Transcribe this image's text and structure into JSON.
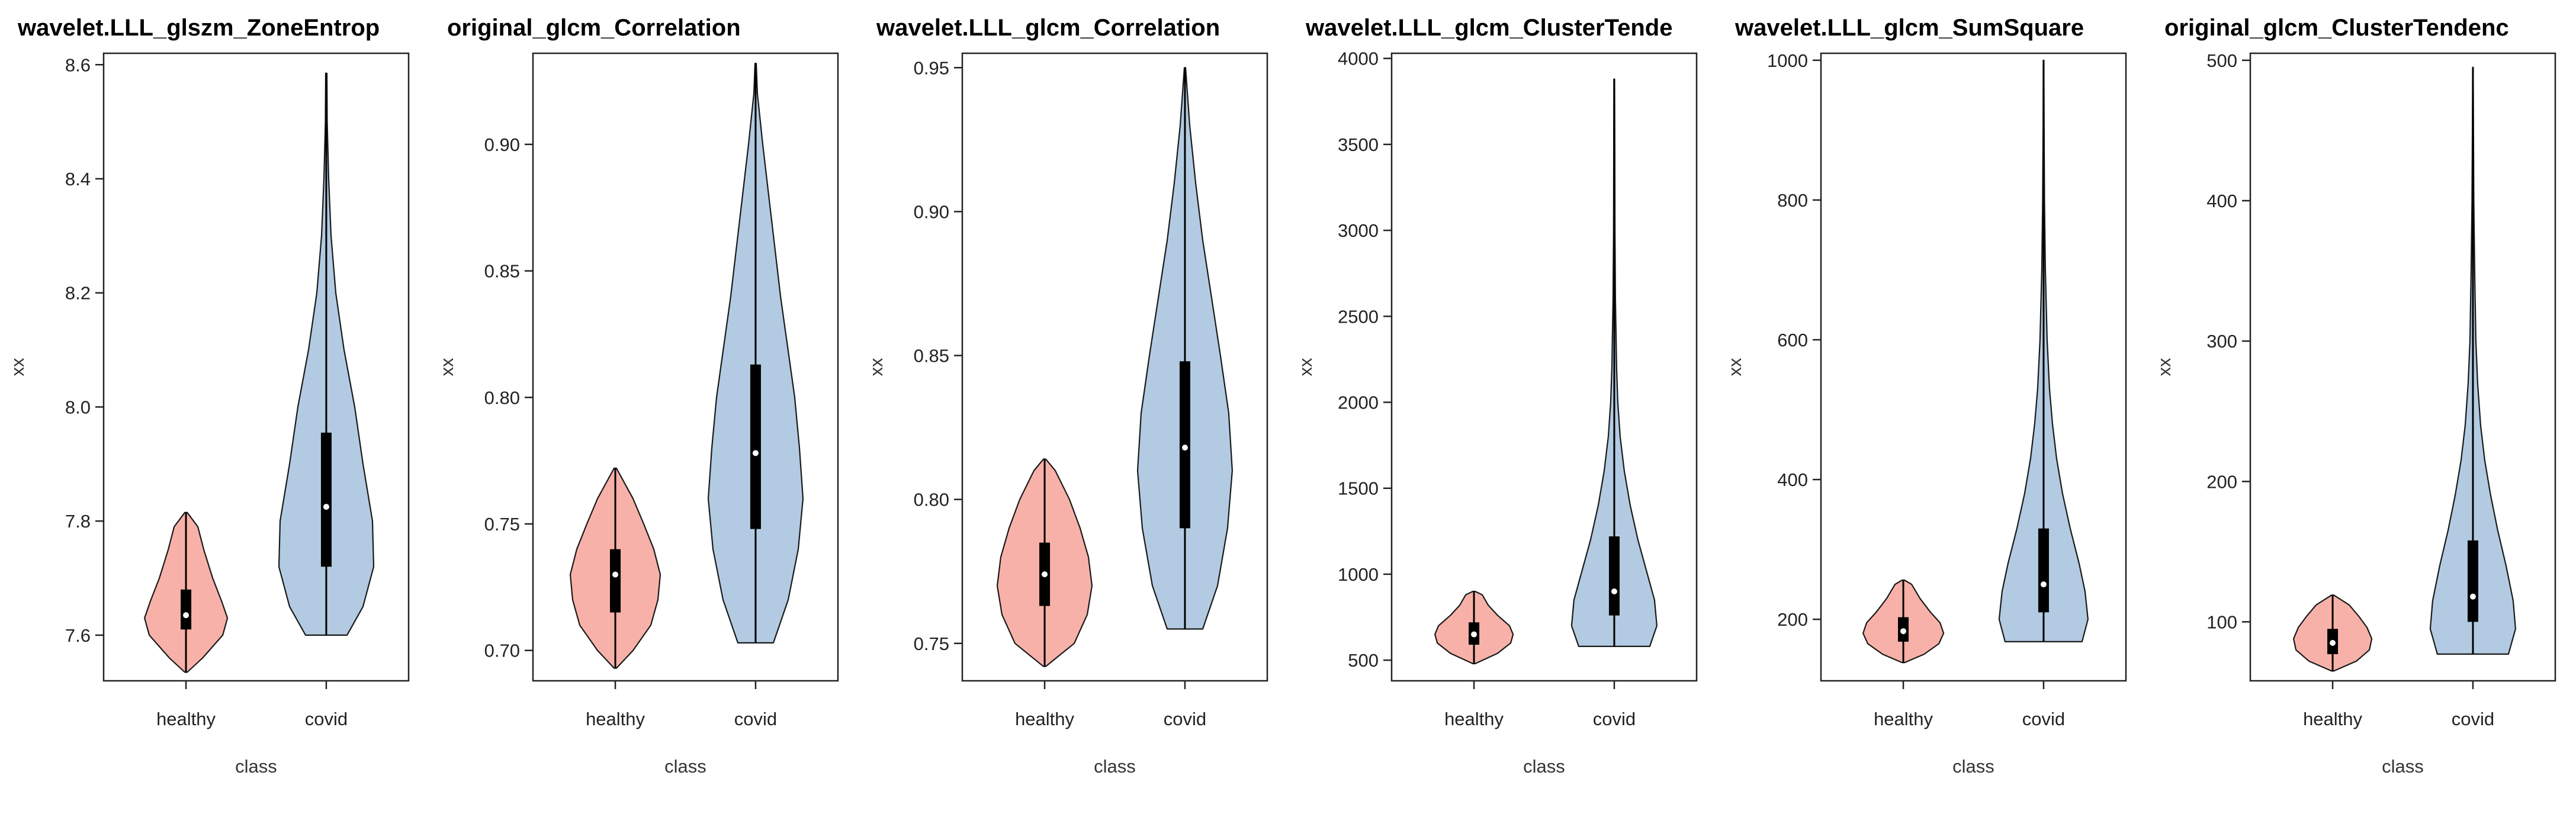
{
  "figure": {
    "panel_count": 6
  },
  "colors": {
    "healthy": "#f8b1a8",
    "covid": "#b2cbe2",
    "outline": "#1a1a1a",
    "box": "#000000",
    "median": "#ffffff"
  },
  "chart_data": [
    {
      "type": "violin",
      "title": "wavelet.LLL_glszm_ZoneEntrop",
      "xlabel": "class",
      "ylabel": "xx",
      "categories": [
        "healthy",
        "covid"
      ],
      "ylim": [
        7.52,
        8.62
      ],
      "yticks": [
        7.6,
        7.8,
        8.0,
        8.2,
        8.4,
        8.6
      ],
      "ytick_labels": [
        "7.6",
        "7.8",
        "8.0",
        "8.2",
        "8.4",
        "8.6"
      ],
      "series": [
        {
          "name": "healthy",
          "min": 7.535,
          "q1": 7.61,
          "median": 7.635,
          "q3": 7.68,
          "max": 7.815,
          "density": [
            [
              7.535,
              0.02
            ],
            [
              7.56,
              0.28
            ],
            [
              7.6,
              0.62
            ],
            [
              7.63,
              0.7
            ],
            [
              7.66,
              0.6
            ],
            [
              7.7,
              0.45
            ],
            [
              7.75,
              0.3
            ],
            [
              7.79,
              0.2
            ],
            [
              7.815,
              0.02
            ]
          ]
        },
        {
          "name": "covid",
          "min": 7.6,
          "q1": 7.72,
          "median": 7.825,
          "q3": 7.955,
          "max": 8.585,
          "density": [
            [
              7.6,
              0.35
            ],
            [
              7.65,
              0.62
            ],
            [
              7.72,
              0.8
            ],
            [
              7.8,
              0.78
            ],
            [
              7.9,
              0.62
            ],
            [
              8.0,
              0.48
            ],
            [
              8.1,
              0.3
            ],
            [
              8.2,
              0.16
            ],
            [
              8.3,
              0.08
            ],
            [
              8.4,
              0.04
            ],
            [
              8.5,
              0.015
            ],
            [
              8.585,
              0.01
            ]
          ]
        }
      ]
    },
    {
      "type": "violin",
      "title": "original_glcm_Correlation",
      "xlabel": "class",
      "ylabel": "xx",
      "categories": [
        "healthy",
        "covid"
      ],
      "ylim": [
        0.688,
        0.936
      ],
      "yticks": [
        0.7,
        0.75,
        0.8,
        0.85,
        0.9
      ],
      "ytick_labels": [
        "0.70",
        "0.75",
        "0.80",
        "0.85",
        "0.90"
      ],
      "series": [
        {
          "name": "healthy",
          "min": 0.693,
          "q1": 0.715,
          "median": 0.73,
          "q3": 0.74,
          "max": 0.772,
          "density": [
            [
              0.693,
              0.02
            ],
            [
              0.7,
              0.3
            ],
            [
              0.71,
              0.6
            ],
            [
              0.72,
              0.72
            ],
            [
              0.73,
              0.76
            ],
            [
              0.74,
              0.65
            ],
            [
              0.75,
              0.48
            ],
            [
              0.76,
              0.3
            ],
            [
              0.772,
              0.02
            ]
          ]
        },
        {
          "name": "covid",
          "min": 0.703,
          "q1": 0.748,
          "median": 0.778,
          "q3": 0.813,
          "max": 0.932,
          "density": [
            [
              0.703,
              0.3
            ],
            [
              0.72,
              0.55
            ],
            [
              0.74,
              0.72
            ],
            [
              0.76,
              0.8
            ],
            [
              0.78,
              0.74
            ],
            [
              0.8,
              0.66
            ],
            [
              0.82,
              0.54
            ],
            [
              0.84,
              0.42
            ],
            [
              0.86,
              0.32
            ],
            [
              0.88,
              0.22
            ],
            [
              0.9,
              0.12
            ],
            [
              0.92,
              0.03
            ],
            [
              0.932,
              0.01
            ]
          ]
        }
      ]
    },
    {
      "type": "violin",
      "title": "wavelet.LLL_glcm_Correlation",
      "xlabel": "class",
      "ylabel": "xx",
      "categories": [
        "healthy",
        "covid"
      ],
      "ylim": [
        0.737,
        0.955
      ],
      "yticks": [
        0.75,
        0.8,
        0.85,
        0.9,
        0.95
      ],
      "ytick_labels": [
        "0.75",
        "0.80",
        "0.85",
        "0.90",
        "0.95"
      ],
      "series": [
        {
          "name": "healthy",
          "min": 0.742,
          "q1": 0.763,
          "median": 0.774,
          "q3": 0.785,
          "max": 0.814,
          "density": [
            [
              0.742,
              0.02
            ],
            [
              0.75,
              0.5
            ],
            [
              0.76,
              0.72
            ],
            [
              0.77,
              0.8
            ],
            [
              0.78,
              0.74
            ],
            [
              0.79,
              0.6
            ],
            [
              0.8,
              0.42
            ],
            [
              0.81,
              0.18
            ],
            [
              0.814,
              0.02
            ]
          ]
        },
        {
          "name": "covid",
          "min": 0.755,
          "q1": 0.79,
          "median": 0.818,
          "q3": 0.848,
          "max": 0.95,
          "density": [
            [
              0.755,
              0.3
            ],
            [
              0.77,
              0.55
            ],
            [
              0.79,
              0.72
            ],
            [
              0.81,
              0.8
            ],
            [
              0.83,
              0.74
            ],
            [
              0.85,
              0.6
            ],
            [
              0.87,
              0.45
            ],
            [
              0.89,
              0.3
            ],
            [
              0.91,
              0.18
            ],
            [
              0.93,
              0.08
            ],
            [
              0.95,
              0.01
            ]
          ]
        }
      ]
    },
    {
      "type": "violin",
      "title": "wavelet.LLL_glcm_ClusterTende",
      "xlabel": "class",
      "ylabel": "xx",
      "categories": [
        "healthy",
        "covid"
      ],
      "ylim": [
        380,
        4030
      ],
      "yticks": [
        500,
        1000,
        1500,
        2000,
        2500,
        3000,
        3500,
        4000
      ],
      "ytick_labels": [
        "500",
        "1000",
        "1500",
        "2000",
        "2500",
        "3000",
        "3500",
        "4000"
      ],
      "series": [
        {
          "name": "healthy",
          "min": 480,
          "q1": 590,
          "median": 650,
          "q3": 720,
          "max": 900,
          "density": [
            [
              480,
              0.02
            ],
            [
              540,
              0.4
            ],
            [
              600,
              0.62
            ],
            [
              650,
              0.66
            ],
            [
              700,
              0.6
            ],
            [
              760,
              0.4
            ],
            [
              820,
              0.24
            ],
            [
              880,
              0.14
            ],
            [
              900,
              0.02
            ]
          ]
        },
        {
          "name": "covid",
          "min": 580,
          "q1": 760,
          "median": 900,
          "q3": 1220,
          "max": 3880,
          "density": [
            [
              580,
              0.6
            ],
            [
              700,
              0.72
            ],
            [
              850,
              0.68
            ],
            [
              1000,
              0.56
            ],
            [
              1200,
              0.4
            ],
            [
              1400,
              0.27
            ],
            [
              1600,
              0.17
            ],
            [
              1800,
              0.1
            ],
            [
              2000,
              0.06
            ],
            [
              2200,
              0.04
            ],
            [
              2600,
              0.02
            ],
            [
              3000,
              0.012
            ],
            [
              3500,
              0.008
            ],
            [
              3880,
              0.005
            ]
          ]
        }
      ]
    },
    {
      "type": "violin",
      "title": "wavelet.LLL_glcm_SumSquare",
      "xlabel": "class",
      "ylabel": "xx",
      "categories": [
        "healthy",
        "covid"
      ],
      "ylim": [
        112,
        1010
      ],
      "yticks": [
        200,
        400,
        600,
        800,
        1000
      ],
      "ytick_labels": [
        "200",
        "400",
        "600",
        "800",
        "1000"
      ],
      "series": [
        {
          "name": "healthy",
          "min": 138,
          "q1": 168,
          "median": 183,
          "q3": 203,
          "max": 256,
          "density": [
            [
              138,
              0.02
            ],
            [
              150,
              0.35
            ],
            [
              165,
              0.6
            ],
            [
              180,
              0.68
            ],
            [
              195,
              0.62
            ],
            [
              210,
              0.46
            ],
            [
              230,
              0.28
            ],
            [
              250,
              0.14
            ],
            [
              256,
              0.02
            ]
          ]
        },
        {
          "name": "covid",
          "min": 168,
          "q1": 210,
          "median": 250,
          "q3": 330,
          "max": 1000,
          "density": [
            [
              168,
              0.65
            ],
            [
              200,
              0.75
            ],
            [
              240,
              0.7
            ],
            [
              280,
              0.6
            ],
            [
              330,
              0.45
            ],
            [
              380,
              0.32
            ],
            [
              430,
              0.22
            ],
            [
              480,
              0.15
            ],
            [
              530,
              0.1
            ],
            [
              600,
              0.06
            ],
            [
              700,
              0.03
            ],
            [
              800,
              0.015
            ],
            [
              900,
              0.008
            ],
            [
              1000,
              0.004
            ]
          ]
        }
      ]
    },
    {
      "type": "violin",
      "title": "original_glcm_ClusterTendenc",
      "xlabel": "class",
      "ylabel": "xx",
      "categories": [
        "healthy",
        "covid"
      ],
      "ylim": [
        58,
        505
      ],
      "yticks": [
        100,
        200,
        300,
        400,
        500
      ],
      "ytick_labels": [
        "100",
        "200",
        "300",
        "400",
        "500"
      ],
      "series": [
        {
          "name": "healthy",
          "min": 65,
          "q1": 77,
          "median": 85,
          "q3": 95,
          "max": 119,
          "density": [
            [
              65,
              0.02
            ],
            [
              72,
              0.4
            ],
            [
              80,
              0.62
            ],
            [
              88,
              0.66
            ],
            [
              96,
              0.58
            ],
            [
              104,
              0.44
            ],
            [
              112,
              0.28
            ],
            [
              119,
              0.02
            ]
          ]
        },
        {
          "name": "covid",
          "min": 77,
          "q1": 100,
          "median": 118,
          "q3": 158,
          "max": 495,
          "density": [
            [
              77,
              0.6
            ],
            [
              95,
              0.72
            ],
            [
              115,
              0.68
            ],
            [
              140,
              0.56
            ],
            [
              165,
              0.42
            ],
            [
              190,
              0.3
            ],
            [
              215,
              0.2
            ],
            [
              240,
              0.13
            ],
            [
              270,
              0.08
            ],
            [
              300,
              0.05
            ],
            [
              350,
              0.03
            ],
            [
              400,
              0.015
            ],
            [
              450,
              0.008
            ],
            [
              495,
              0.004
            ]
          ]
        }
      ]
    }
  ]
}
